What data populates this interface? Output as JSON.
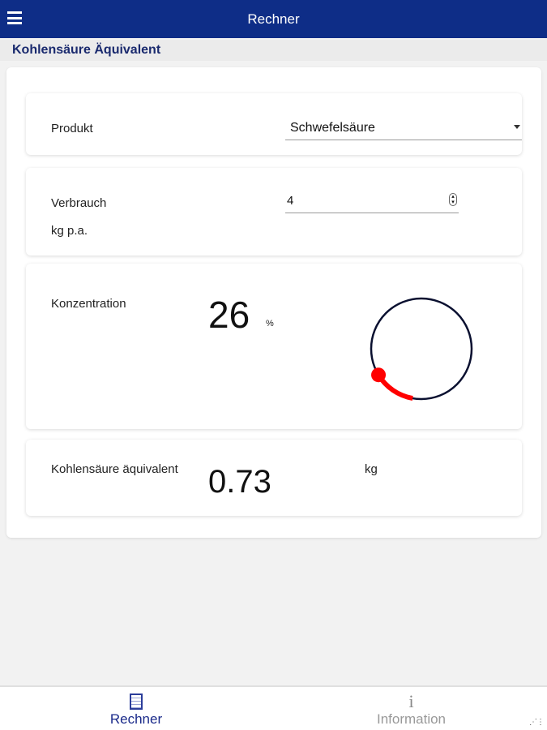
{
  "header": {
    "title": "Rechner",
    "menu_icon": "hamburger-icon"
  },
  "page_title": "Kohlensäure Äquivalent",
  "produkt": {
    "label": "Produkt",
    "value": "Schwefelsäure"
  },
  "verbrauch": {
    "label": "Verbrauch",
    "unit": "kg p.a.",
    "value": "4"
  },
  "konzentration": {
    "label": "Konzentration",
    "value": "26",
    "unit": "%",
    "gauge_percent": 26,
    "gauge_color": "#ff0000",
    "track_color": "#0a1030"
  },
  "result": {
    "label": "Kohlensäure äquivalent",
    "value": "0.73",
    "unit": "kg"
  },
  "tabs": [
    {
      "label": "Rechner",
      "icon": "calculator-icon",
      "active": true
    },
    {
      "label": "Information",
      "icon": "info-icon",
      "active": false
    }
  ],
  "colors": {
    "brand": "#0e2d87"
  }
}
